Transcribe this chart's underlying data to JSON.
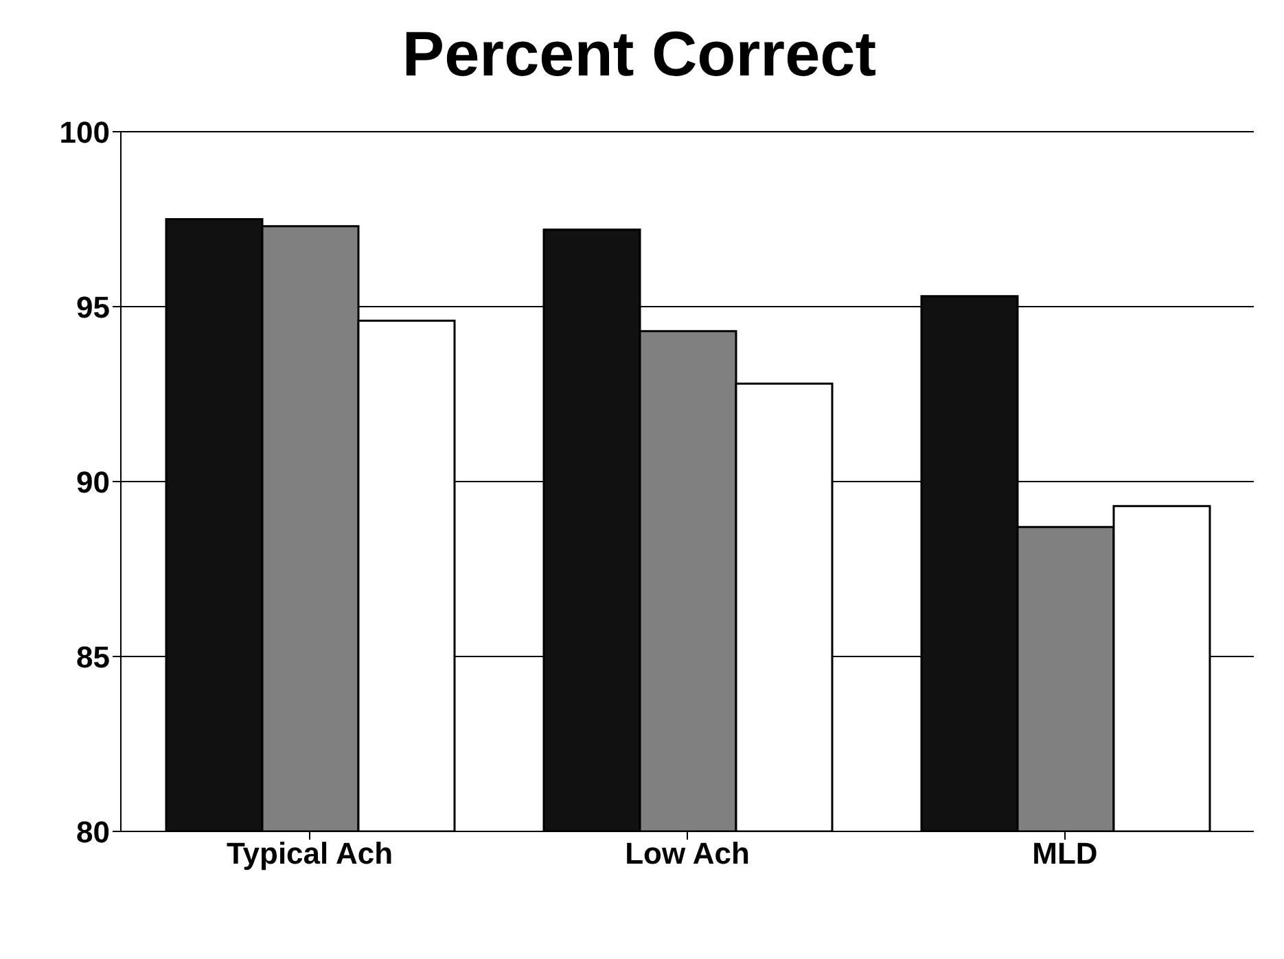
{
  "chart_data": {
    "type": "bar",
    "title": "Percent Correct",
    "categories": [
      "Typical Ach",
      "Low Ach",
      "MLD"
    ],
    "series": [
      {
        "color": "#111111",
        "values": [
          97.5,
          97.2,
          95.3
        ]
      },
      {
        "color": "#808080",
        "values": [
          97.3,
          94.3,
          88.7
        ]
      },
      {
        "color": "#ffffff",
        "values": [
          94.6,
          92.8,
          89.3
        ]
      }
    ],
    "ylim": [
      80,
      100
    ],
    "yticks": [
      80,
      85,
      90,
      95,
      100
    ],
    "grid": "y",
    "legend": false
  }
}
